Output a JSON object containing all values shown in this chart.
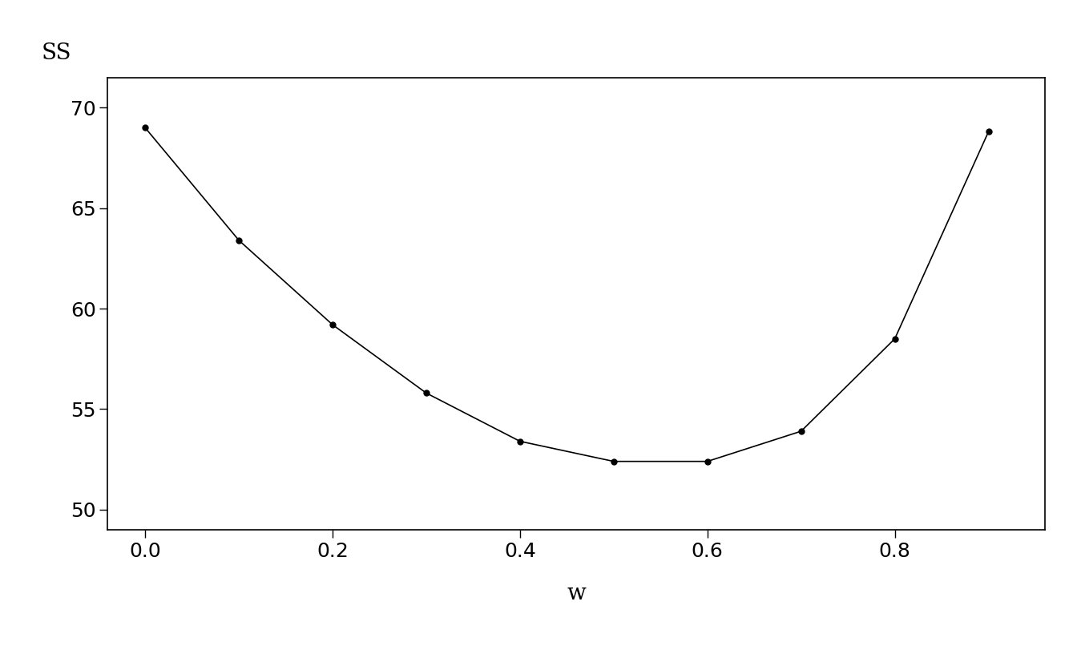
{
  "x": [
    0.0,
    0.1,
    0.2,
    0.3,
    0.4,
    0.5,
    0.6,
    0.7,
    0.8,
    0.9
  ],
  "y": [
    69.0,
    63.4,
    59.2,
    55.8,
    53.4,
    52.4,
    52.4,
    53.9,
    58.5,
    68.8
  ],
  "xlabel": "w",
  "ylabel": "SS",
  "xlim": [
    -0.04,
    0.96
  ],
  "ylim": [
    49.0,
    71.5
  ],
  "xticks": [
    0.0,
    0.2,
    0.4,
    0.6,
    0.8
  ],
  "yticks": [
    50,
    55,
    60,
    65,
    70
  ],
  "line_color": "#000000",
  "marker": "o",
  "marker_size": 5,
  "marker_color": "#000000",
  "line_width": 1.2,
  "background_color": "#ffffff",
  "xlabel_fontsize": 20,
  "ylabel_fontsize": 20,
  "tick_fontsize": 18
}
